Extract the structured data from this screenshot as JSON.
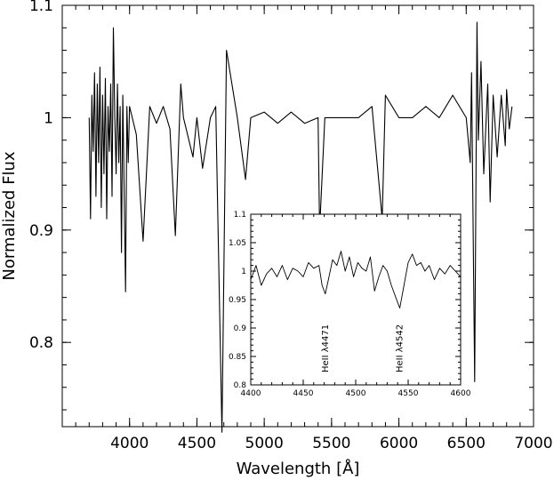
{
  "chart_data": [
    {
      "type": "line",
      "title": "",
      "xlabel": "Wavelength [Å]",
      "ylabel": "Normalized Flux",
      "xlim": [
        3500,
        7000
      ],
      "ylim": [
        0.725,
        1.1
      ],
      "xticks": [
        "4000",
        "4500",
        "5000",
        "5500",
        "6000",
        "6500",
        "7000"
      ],
      "yticks": [
        "0.8",
        "0.9",
        "1",
        "1.1"
      ],
      "grid": false,
      "legend": "none",
      "series": [
        {
          "x": [
            3700,
            3710,
            3720,
            3730,
            3740,
            3750,
            3760,
            3770,
            3780,
            3790,
            3800,
            3810,
            3820,
            3830,
            3840,
            3850,
            3860,
            3870,
            3880,
            3890,
            3900,
            3910,
            3920,
            3930,
            3940,
            3950,
            3960,
            3970,
            3980,
            3990,
            4000,
            4050,
            4100,
            4150,
            4200,
            4250,
            4300,
            4340,
            4380,
            4400,
            4471,
            4500,
            4542,
            4600,
            4640,
            4686,
            4720,
            4800,
            4861,
            4900,
            5000,
            5100,
            5200,
            5300,
            5400,
            5411,
            5450,
            5500,
            5600,
            5700,
            5800,
            5876,
            5900,
            6000,
            6100,
            6200,
            6300,
            6400,
            6500,
            6530,
            6540,
            6563,
            6580,
            6590,
            6610,
            6630,
            6660,
            6678,
            6700,
            6730,
            6760,
            6790,
            6800,
            6820,
            6840
          ],
          "y": [
            1.0,
            0.91,
            1.02,
            0.97,
            1.04,
            0.93,
            1.03,
            0.96,
            1.045,
            0.92,
            1.02,
            0.95,
            1.035,
            0.91,
            1.01,
            0.97,
            1.03,
            0.93,
            1.08,
            1.0,
            0.95,
            1.03,
            0.96,
            1.01,
            0.88,
            1.02,
            0.93,
            0.845,
            1.01,
            0.96,
            1.01,
            0.985,
            0.89,
            1.01,
            0.995,
            1.01,
            0.99,
            0.895,
            1.03,
            1.0,
            0.965,
            1.0,
            0.955,
            1.0,
            1.01,
            0.72,
            1.06,
            1.0,
            0.945,
            1.0,
            1.005,
            0.995,
            1.005,
            0.995,
            1.0,
            0.9,
            1.0,
            1.0,
            1.0,
            1.0,
            1.01,
            0.91,
            1.02,
            1.0,
            1.0,
            1.01,
            1.0,
            1.02,
            1.0,
            0.96,
            1.04,
            0.765,
            1.085,
            0.98,
            1.05,
            0.95,
            1.03,
            0.925,
            1.02,
            0.965,
            1.02,
            0.975,
            1.025,
            0.99,
            1.01
          ]
        }
      ]
    },
    {
      "type": "line",
      "title": "",
      "xlabel": "",
      "ylabel": "",
      "xlim": [
        4400,
        4600
      ],
      "ylim": [
        0.8,
        1.1
      ],
      "xticks": [
        "4400",
        "4450",
        "4500",
        "4550",
        "4600"
      ],
      "yticks": [
        "0.8",
        "0.85",
        "0.9",
        "0.95",
        "1",
        "1.05",
        "1.1"
      ],
      "grid": false,
      "legend": "none",
      "annotations": [
        "HeII λ4471",
        "HeII λ4542"
      ],
      "series": [
        {
          "x": [
            4400,
            4405,
            4410,
            4415,
            4420,
            4425,
            4430,
            4435,
            4440,
            4445,
            4450,
            4455,
            4460,
            4465,
            4468,
            4471,
            4474,
            4478,
            4482,
            4486,
            4490,
            4494,
            4498,
            4502,
            4506,
            4510,
            4514,
            4518,
            4522,
            4526,
            4530,
            4534,
            4538,
            4542,
            4546,
            4550,
            4554,
            4558,
            4562,
            4566,
            4570,
            4575,
            4580,
            4585,
            4590,
            4595,
            4600
          ],
          "y": [
            0.985,
            1.01,
            0.975,
            0.995,
            1.005,
            0.99,
            1.01,
            0.985,
            1.005,
            1.0,
            0.99,
            1.015,
            1.005,
            1.01,
            0.975,
            0.96,
            0.985,
            1.02,
            1.01,
            1.035,
            1.0,
            1.025,
            0.99,
            1.015,
            1.005,
            1.0,
            1.025,
            0.965,
            0.99,
            1.01,
            1.0,
            0.975,
            0.955,
            0.935,
            0.975,
            1.015,
            1.03,
            1.01,
            1.015,
            1.0,
            1.01,
            0.985,
            1.005,
            0.995,
            1.01,
            1.0,
            0.99
          ]
        }
      ]
    }
  ]
}
